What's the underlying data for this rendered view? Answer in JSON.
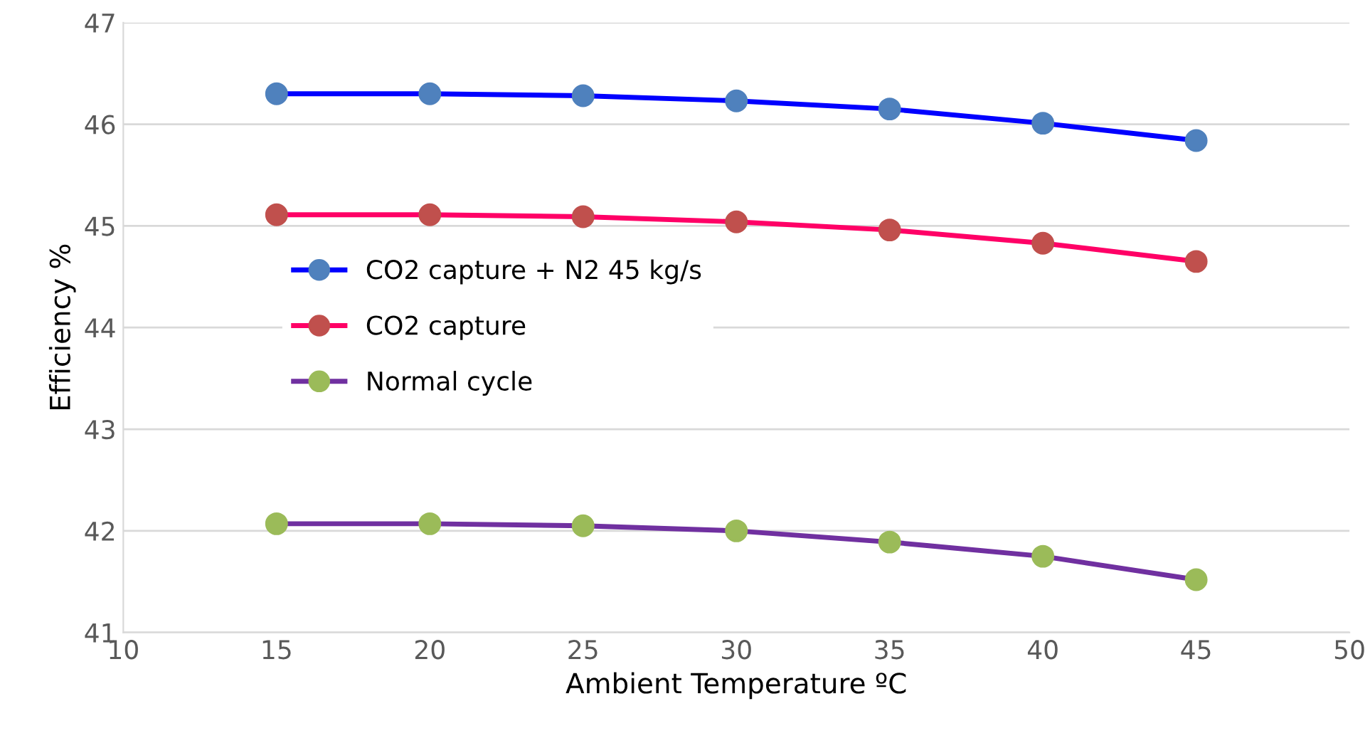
{
  "chart_data": {
    "type": "line",
    "xlabel": "Ambient Temperature ºC",
    "ylabel": "Efficiency %",
    "x": [
      15,
      20,
      25,
      30,
      35,
      40,
      45
    ],
    "series": [
      {
        "name": "CO2 capture + N2 45 kg/s",
        "color": "#0000ff",
        "colors": [
          "#4f81bd",
          "#4f81bd",
          "#4f81bd",
          "#4f81bd",
          "#4f81bd",
          "#4f81bd",
          "#4f81bd"
        ],
        "values": [
          46.3,
          46.3,
          46.28,
          46.23,
          46.15,
          46.01,
          45.84
        ]
      },
      {
        "name": "CO2 capture",
        "color": "#ff0066",
        "colors": [
          "#c0504d",
          "#c0504d",
          "#c0504d",
          "#c0504d",
          "#c0504d",
          "#c0504d",
          "#c0504d"
        ],
        "values": [
          45.11,
          45.11,
          45.09,
          45.04,
          44.96,
          44.83,
          44.65
        ]
      },
      {
        "name": "Normal cycle",
        "color": "#7030a0",
        "colors": [
          "#9bbb59",
          "#9bbb59",
          "#9bbb59",
          "#9bbb59",
          "#9bbb59",
          "#9bbb59",
          "#9bbb59"
        ],
        "values": [
          42.07,
          42.07,
          42.05,
          42.0,
          41.89,
          41.75,
          41.52
        ]
      }
    ],
    "xlim": [
      10,
      50
    ],
    "xticks": [
      10,
      15,
      20,
      25,
      30,
      35,
      40,
      45,
      50
    ],
    "ylim": [
      41,
      47
    ],
    "yticks": [
      41,
      42,
      43,
      44,
      45,
      46,
      47
    ],
    "grid": "y",
    "legend": "center left",
    "marker": "circle",
    "line_style": "solid"
  }
}
